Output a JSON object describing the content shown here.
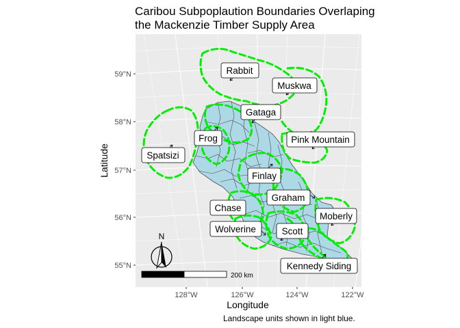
{
  "title": {
    "line1": "Caribou Subpoplaution Boundaries Overlaping",
    "line2": "the Mackenzie Timber Supply Area"
  },
  "axes": {
    "x_title": "Longitude",
    "y_title": "Latitude",
    "x_ticks": [
      "128°W",
      "126°W",
      "124°W",
      "122°W"
    ],
    "y_ticks": [
      "59°N",
      "58°N",
      "57°N",
      "56°N",
      "55°N"
    ]
  },
  "scale_bar": {
    "label": "200 km"
  },
  "north_arrow": {
    "label": "N",
    "icon": "north-arrow-icon"
  },
  "caption": "Landscape units shown in light blue.",
  "colors": {
    "panel_bg": "#ebebeb",
    "grid": "#ffffff",
    "landscape_fill": "#add8e6",
    "boundary": "#00ee00"
  },
  "subpopulations": [
    {
      "id": "rabbit",
      "label": "Rabbit"
    },
    {
      "id": "muskwa",
      "label": "Muskwa"
    },
    {
      "id": "gataga",
      "label": "Gataga"
    },
    {
      "id": "frog",
      "label": "Frog"
    },
    {
      "id": "pink-mountain",
      "label": "Pink Mountain"
    },
    {
      "id": "spatsizi",
      "label": "Spatsizi"
    },
    {
      "id": "finlay",
      "label": "Finlay"
    },
    {
      "id": "graham",
      "label": "Graham"
    },
    {
      "id": "chase",
      "label": "Chase"
    },
    {
      "id": "moberly",
      "label": "Moberly"
    },
    {
      "id": "wolverine",
      "label": "Wolverine"
    },
    {
      "id": "scott",
      "label": "Scott"
    },
    {
      "id": "kennedy-siding",
      "label": "Kennedy Siding"
    }
  ]
}
